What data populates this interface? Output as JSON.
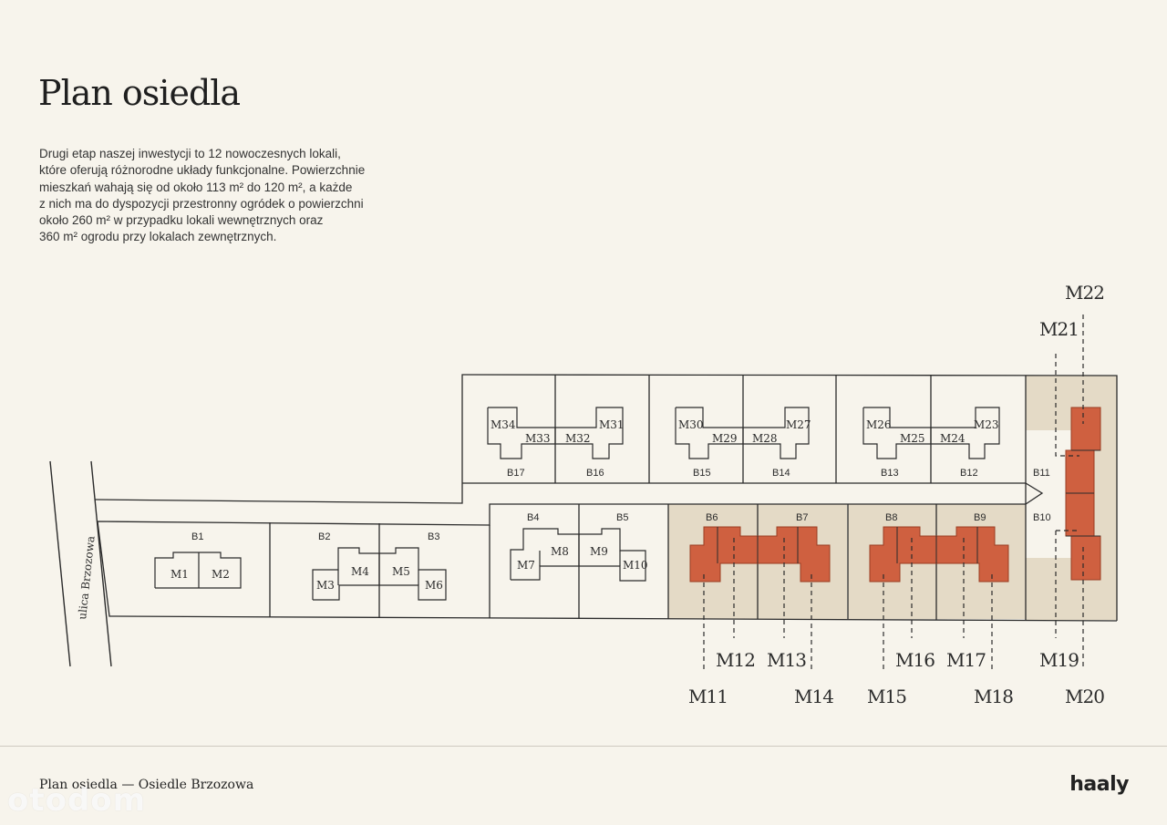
{
  "title": "Plan osiedla",
  "description": [
    "Drugi etap naszej inwestycji to 12 nowoczesnych lokali,",
    "które oferują różnorodne układy funkcjonalne. Powierzchnie",
    "mieszkań wahają się od około 113 m² do 120 m², a każde",
    "z nich ma do dyspozycji przestronny ogródek o powierzchni",
    "około 260 m² w przypadku lokali wewnętrznych oraz",
    "360 m² ogrodu przy lokalach zewnętrznych."
  ],
  "street": "ulica Brzozowa",
  "plots": [
    "B1",
    "B2",
    "B3",
    "B4",
    "B5",
    "B6",
    "B7",
    "B8",
    "B9",
    "B10",
    "B11",
    "B12",
    "B13",
    "B14",
    "B15",
    "B16",
    "B17"
  ],
  "units_stage1": [
    "M1",
    "M2",
    "M3",
    "M4",
    "M5",
    "M6",
    "M7",
    "M8",
    "M9",
    "M10",
    "M23",
    "M24",
    "M25",
    "M26",
    "M27",
    "M28",
    "M29",
    "M30",
    "M31",
    "M32",
    "M33",
    "M34"
  ],
  "units_highlighted": [
    "M11",
    "M12",
    "M13",
    "M14",
    "M15",
    "M16",
    "M17",
    "M18",
    "M19",
    "M20",
    "M21",
    "M22"
  ],
  "colors": {
    "background": "#f7f4ec",
    "highlight": "#cf6040",
    "garden": "#e4dac6",
    "line": "#2b2b2b"
  },
  "footer": {
    "caption": "Plan osiedla — Osiedle Brzozowa",
    "brand": "haaly"
  },
  "watermark": "otodom"
}
